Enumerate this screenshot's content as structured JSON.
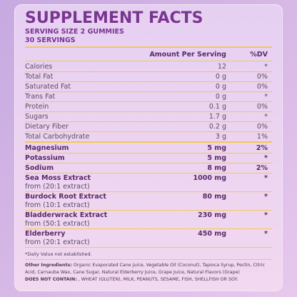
{
  "header": {
    "title": "SUPPLEMENT FACTS",
    "serving_size": "SERVING SIZE 2 GUMMIES",
    "servings": "30 SERVINGS"
  },
  "table": {
    "columns": [
      "Amount Per Serving",
      "%DV"
    ],
    "nutrients": [
      {
        "name": "Calories",
        "amount": "12",
        "dv": "*"
      },
      {
        "name": "Total Fat",
        "amount": "0 g",
        "dv": "0%"
      },
      {
        "name": "Saturated Fat",
        "amount": "0 g",
        "dv": "0%"
      },
      {
        "name": "Trans Fat",
        "amount": "0 g",
        "dv": "*"
      },
      {
        "name": "Protein",
        "amount": "0.1 g",
        "dv": "0%"
      },
      {
        "name": "Sugars",
        "amount": "1.7 g",
        "dv": "*"
      },
      {
        "name": "Dietary Fiber",
        "amount": "0.2 g",
        "dv": "0%"
      },
      {
        "name": "Total Carbohydrate",
        "amount": "3 g",
        "dv": "1%"
      }
    ],
    "ingredients": [
      {
        "name": "Magnesium",
        "amount": "5 mg",
        "dv": "2%"
      },
      {
        "name": "Potassium",
        "amount": "5 mg",
        "dv": "*"
      },
      {
        "name": "Sodium",
        "amount": "8 mg",
        "dv": "2%"
      },
      {
        "name": "Sea Moss Extract",
        "source": "from (20:1 extract)",
        "amount": "1000 mg",
        "dv": "*"
      },
      {
        "name": "Burdock Root Extract",
        "source": "from (10:1 extract)",
        "amount": "80 mg",
        "dv": "*"
      },
      {
        "name": "Bladderwrack Extract",
        "source": "from (50:1 extract)",
        "amount": "230 mg",
        "dv": "*"
      },
      {
        "name": "Elderberry",
        "source": "from (20:1 extract)",
        "amount": "450 mg",
        "dv": "*"
      }
    ]
  },
  "footnote": "*Daily Value not established.",
  "other": {
    "label": "Other Ingredients:",
    "text": "Organic Evaporated Cane Juice, Vegetable Oil (Coconut), Tapioca Syrup, Pectin, Citric Acid, Carnauba Wax, Cane Sugar, Natural Elderberry Juice, Grape Juice, Natural Flavors (Grape)",
    "allergen_label": "DOES NOT CONTAIN:",
    "allergen_text": ", WHEAT (GLUTEN), MILK, PEANUTS, SESAME, FISH, SHELLFISH OR SOY."
  }
}
